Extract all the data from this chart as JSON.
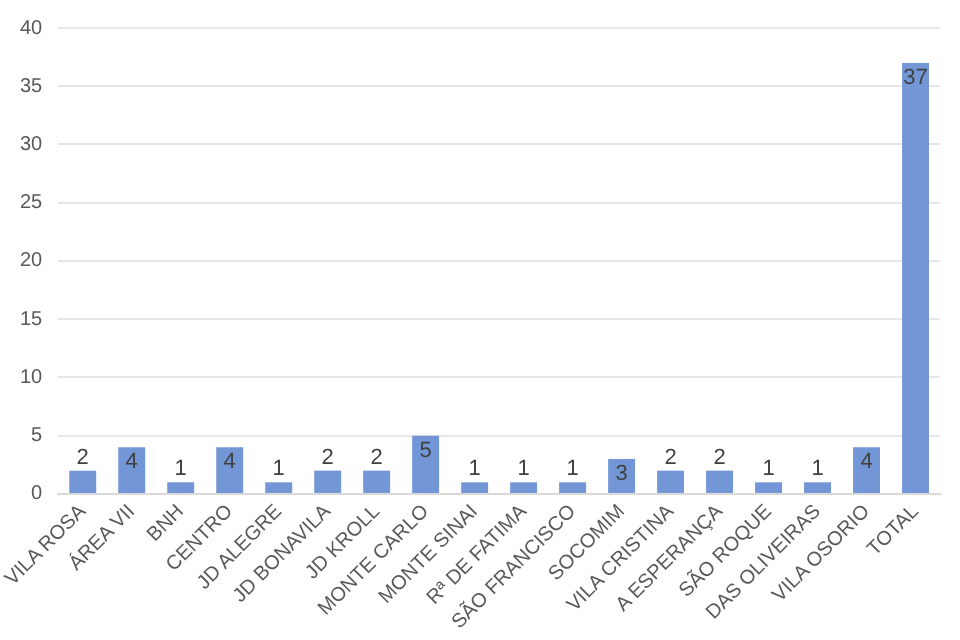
{
  "chart_data": {
    "type": "bar",
    "categories": [
      "VILA ROSA",
      "ÁREA VII",
      "BNH",
      "CENTRO",
      "JD ALEGRE",
      "JD BONAVILA",
      "JD KROLL",
      "MONTE CARLO",
      "MONTE SINAI",
      "Rª DE FATIMA",
      "SÃO FRANCISCO",
      "SOCOMIM",
      "VILA CRISTINA",
      "A ESPERANÇA",
      "SÃO ROQUE",
      "DAS OLIVEIRAS",
      "VILA OSORIO",
      "TOTAL"
    ],
    "values": [
      2,
      4,
      1,
      4,
      1,
      2,
      2,
      5,
      1,
      1,
      1,
      3,
      2,
      2,
      1,
      1,
      4,
      37
    ],
    "color": "#7397d6",
    "ylim": [
      0,
      40
    ],
    "yticks": [
      0,
      5,
      10,
      15,
      20,
      25,
      30,
      35,
      40
    ],
    "grid": "y",
    "data_labels": true,
    "legend": false
  }
}
